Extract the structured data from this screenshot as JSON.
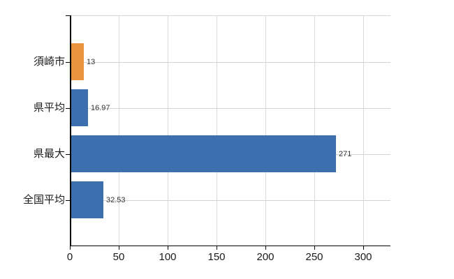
{
  "chart_data": {
    "type": "bar",
    "orientation": "horizontal",
    "categories": [
      "須崎市",
      "県平均",
      "県最大",
      "全国平均"
    ],
    "values": [
      13,
      16.97,
      271,
      32.53
    ],
    "value_labels": [
      "13",
      "16.97",
      "271",
      "32.53"
    ],
    "bar_colors": [
      "#eb9440",
      "#3c6fae",
      "#3c6fae",
      "#3c6fae"
    ],
    "x_ticks": [
      0,
      50,
      100,
      150,
      200,
      250,
      300
    ],
    "x_tick_labels": [
      "0",
      "50",
      "100",
      "150",
      "200",
      "250",
      "300"
    ],
    "xlim": [
      0,
      328
    ],
    "grid": true,
    "legend": false,
    "title": "",
    "xlabel": "",
    "ylabel": ""
  },
  "colors": {
    "bar_blue": "#3c6fae",
    "bar_orange": "#eb9440",
    "gridline": "#d6d6d6",
    "axis": "#000000",
    "text": "#1a1a1a",
    "value_text": "#333333",
    "background": "#ffffff"
  }
}
